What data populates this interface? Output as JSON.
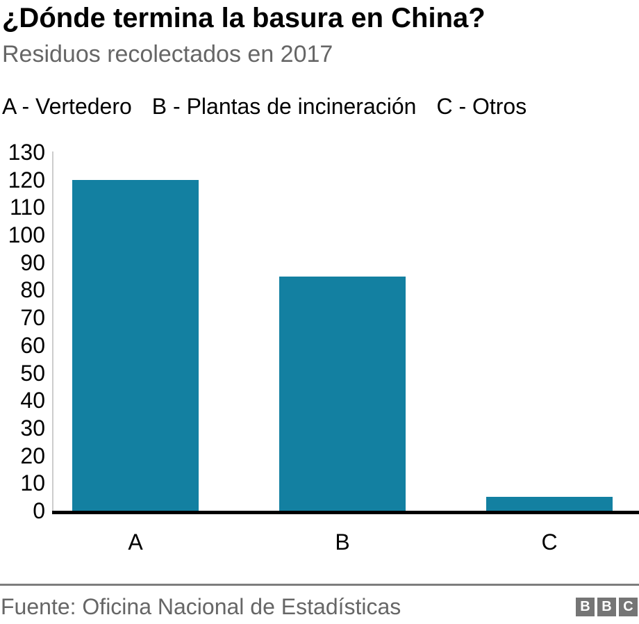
{
  "header": {
    "title": "¿Dónde termina la basura en China?",
    "subtitle": "Residuos recolectados en 2017"
  },
  "legend": {
    "items": [
      "A - Vertedero",
      "B - Plantas de incineración",
      "C - Otros"
    ]
  },
  "chart_data": {
    "type": "bar",
    "title": "¿Dónde termina la basura en China?",
    "subtitle": "Residuos recolectados en 2017",
    "categories": [
      "A",
      "B",
      "C"
    ],
    "category_meanings": [
      "Vertedero",
      "Plantas de incineración",
      "Otros"
    ],
    "values": [
      120,
      85,
      5
    ],
    "xlabel": "",
    "ylabel": "",
    "ylim": [
      0,
      130
    ],
    "yticks": [
      0,
      10,
      20,
      30,
      40,
      50,
      60,
      70,
      80,
      90,
      100,
      110,
      120,
      130
    ],
    "grid": false,
    "legend_position": "top-left",
    "bar_color": "#1380A1"
  },
  "footer": {
    "source": "Fuente: Oficina Nacional de Estadísticas",
    "logo_letters": [
      "B",
      "B",
      "C"
    ]
  },
  "colors": {
    "bar": "#1380A1",
    "title_text": "#000000",
    "subtitle_text": "#666666",
    "axis_line": "#cccccc",
    "baseline": "#000000",
    "divider": "#7d7d7d",
    "source_text": "#666666",
    "logo_block": "#757575"
  }
}
